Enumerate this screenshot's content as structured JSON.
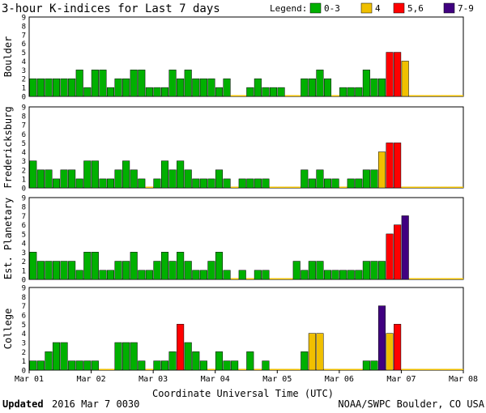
{
  "title": "3-hour K-indices for Last 7 days",
  "legend": {
    "label": "Legend:",
    "items": [
      {
        "label": "0-3",
        "color": "#00b000"
      },
      {
        "label": "4",
        "color": "#f0c000"
      },
      {
        "label": "5,6",
        "color": "#ff0000"
      },
      {
        "label": "7-9",
        "color": "#400080"
      }
    ]
  },
  "chart_data": {
    "type": "bar",
    "title": "3-hour K-indices for Last 7 days",
    "xlabel": "Coordinate Universal Time (UTC)",
    "ylabel": "",
    "ylim": [
      0,
      9
    ],
    "y_ticks": [
      0,
      1,
      2,
      3,
      4,
      5,
      6,
      7,
      8,
      9
    ],
    "x_ticks": [
      "Mar 01",
      "Mar 02",
      "Mar 03",
      "Mar 04",
      "Mar 05",
      "Mar 06",
      "Mar 07",
      "Mar 08"
    ],
    "grid": false,
    "legend_position": "top-right",
    "color_scale": [
      {
        "range": "0-3",
        "color": "#00b000"
      },
      {
        "range": "4",
        "color": "#f0c000"
      },
      {
        "range": "5,6",
        "color": "#ff0000"
      },
      {
        "range": "7-9",
        "color": "#400080"
      }
    ],
    "series": [
      {
        "name": "Boulder",
        "values": [
          2,
          2,
          2,
          2,
          2,
          2,
          3,
          1,
          3,
          3,
          1,
          2,
          2,
          3,
          3,
          1,
          1,
          1,
          3,
          2,
          3,
          2,
          2,
          2,
          1,
          2,
          0,
          0,
          1,
          2,
          1,
          1,
          1,
          0,
          0,
          2,
          2,
          3,
          2,
          0,
          1,
          1,
          1,
          3,
          2,
          2,
          5,
          5,
          4
        ]
      },
      {
        "name": "Fredericksburg",
        "values": [
          3,
          2,
          2,
          1,
          2,
          2,
          1,
          3,
          3,
          1,
          1,
          2,
          3,
          2,
          1,
          0,
          1,
          3,
          2,
          3,
          2,
          1,
          1,
          1,
          2,
          1,
          0,
          1,
          1,
          1,
          1,
          0,
          0,
          0,
          0,
          2,
          1,
          2,
          1,
          1,
          0,
          1,
          1,
          2,
          2,
          4,
          5,
          5
        ]
      },
      {
        "name": "Est. Planetary",
        "values": [
          3,
          2,
          2,
          2,
          2,
          2,
          1,
          3,
          3,
          1,
          1,
          2,
          2,
          3,
          1,
          1,
          2,
          3,
          2,
          3,
          2,
          1,
          1,
          2,
          3,
          1,
          0,
          1,
          0,
          1,
          1,
          0,
          0,
          0,
          2,
          1,
          2,
          2,
          1,
          1,
          1,
          1,
          1,
          2,
          2,
          2,
          5,
          6,
          7
        ]
      },
      {
        "name": "College",
        "values": [
          1,
          1,
          2,
          3,
          3,
          1,
          1,
          1,
          1,
          0,
          0,
          3,
          3,
          3,
          1,
          0,
          1,
          1,
          2,
          5,
          3,
          2,
          1,
          0,
          2,
          1,
          1,
          0,
          2,
          0,
          1,
          0,
          0,
          0,
          0,
          2,
          4,
          4,
          0,
          0,
          0,
          0,
          0,
          1,
          1,
          7,
          4,
          5
        ]
      }
    ]
  },
  "footer": {
    "updated_label": "Updated",
    "updated_value": "2016 Mar  7 0030",
    "source": "NOAA/SWPC Boulder, CO USA"
  }
}
